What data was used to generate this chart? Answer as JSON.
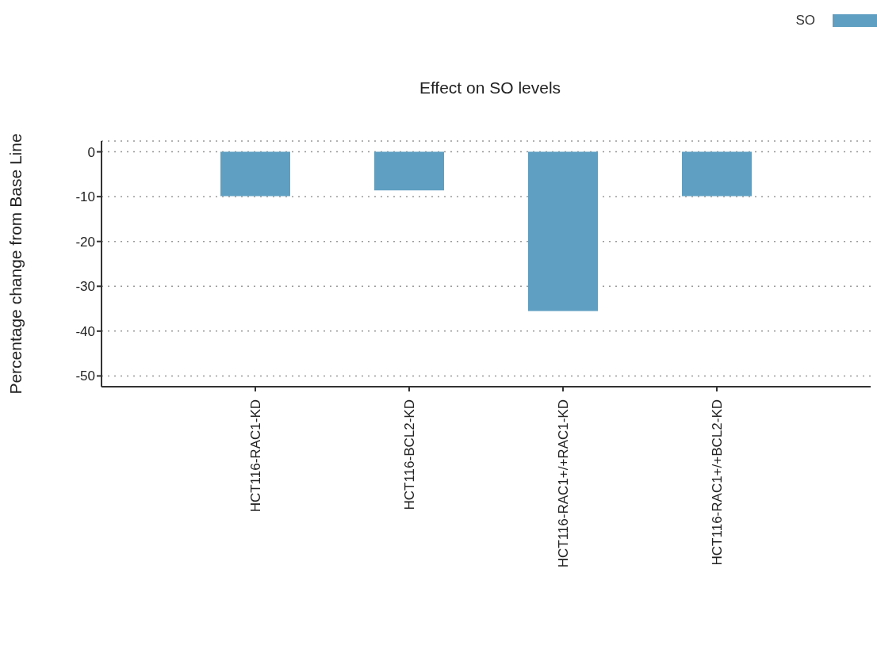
{
  "chart_data": {
    "type": "bar",
    "title": "Effect on SO levels",
    "ylabel": "Percentage change from Base Line",
    "categories": [
      "HCT116-RAC1-KD",
      "HCT116-BCL2-KD",
      "HCT116-RAC1+/+RAC1-KD",
      "HCT116-RAC1+/+BCL2-KD"
    ],
    "series": [
      {
        "name": "SO",
        "color": "#5f9fc1",
        "values": [
          -9.9,
          -8.6,
          -35.5,
          -9.9
        ]
      }
    ],
    "ylim": [
      -52.4,
      2.4
    ],
    "yticks": [
      -50,
      -40,
      -30,
      -20,
      -10,
      0
    ],
    "grid": "y",
    "legend": "top right"
  }
}
